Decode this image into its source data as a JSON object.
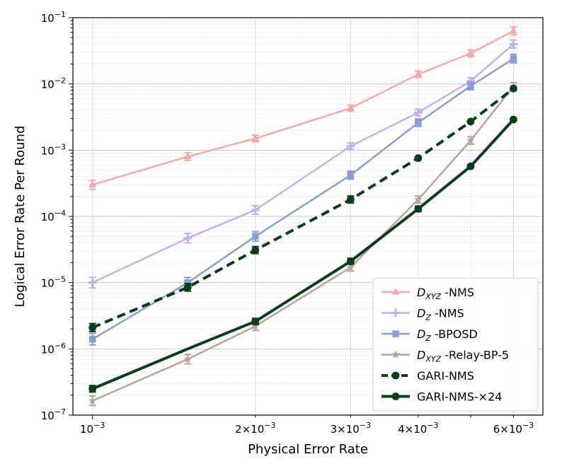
{
  "chart_data": {
    "type": "line",
    "xscale": "log",
    "yscale": "log",
    "xlabel": "Physical Error Rate",
    "ylabel": "Logical Error Rate Per Round",
    "xlim": [
      0.00092,
      0.0068
    ],
    "ylim": [
      1e-07,
      0.1
    ],
    "grid": true,
    "legend_position": "lower-right",
    "x_ticks": [
      {
        "value": 0.001,
        "base": "10",
        "exp": "−3",
        "coef": ""
      },
      {
        "value": 0.002,
        "base": "10",
        "exp": "−3",
        "coef": "2×"
      },
      {
        "value": 0.003,
        "base": "10",
        "exp": "−3",
        "coef": "3×"
      },
      {
        "value": 0.004,
        "base": "10",
        "exp": "−3",
        "coef": "4×"
      },
      {
        "value": 0.006,
        "base": "10",
        "exp": "−3",
        "coef": "6×"
      }
    ],
    "y_ticks": [
      {
        "value": 1e-07,
        "base": "10",
        "exp": "−7"
      },
      {
        "value": 1e-06,
        "base": "10",
        "exp": "−6"
      },
      {
        "value": 1e-05,
        "base": "10",
        "exp": "−5"
      },
      {
        "value": 0.0001,
        "base": "10",
        "exp": "−4"
      },
      {
        "value": 0.001,
        "base": "10",
        "exp": "−3"
      },
      {
        "value": 0.01,
        "base": "10",
        "exp": "−2"
      },
      {
        "value": 0.1,
        "base": "10",
        "exp": "−1"
      }
    ],
    "series": [
      {
        "name": "D_XYZ -NMS",
        "label_main": "D",
        "label_sub": "XYZ",
        "label_rest": " -NMS",
        "color": "#f4a9a8",
        "marker": "triangle",
        "dash": "",
        "width": 2.5,
        "x": [
          0.001,
          0.0015,
          0.002,
          0.003,
          0.004,
          0.005,
          0.006
        ],
        "y": [
          0.0003,
          0.0008,
          0.0015,
          0.0043,
          0.014,
          0.029,
          0.063
        ],
        "err": [
          0.17,
          0.14,
          0.12,
          0.11,
          0.12,
          0.13,
          0.15
        ]
      },
      {
        "name": "D_Z -NMS",
        "label_main": "D",
        "label_sub": "Z",
        "label_rest": " -NMS",
        "color": "#c8aee6",
        "marker": "plus",
        "dash": "",
        "width": 2.5,
        "x": [
          0.001,
          0.0015,
          0.002,
          0.003,
          0.004,
          0.005,
          0.006
        ],
        "y": [
          1e-05,
          4.7e-05,
          0.000125,
          0.00115,
          0.0037,
          0.011,
          0.04
        ],
        "err": [
          0.2,
          0.18,
          0.16,
          0.12,
          0.12,
          0.13,
          0.15
        ]
      },
      {
        "name": "D_Z -BPOSD",
        "label_main": "D",
        "label_sub": "Z",
        "label_rest": " -BPOSD",
        "color": "#8a9ed2",
        "marker": "square",
        "dash": "",
        "width": 2.5,
        "x": [
          0.001,
          0.0015,
          0.002,
          0.003,
          0.004,
          0.005,
          0.006
        ],
        "y": [
          1.4e-06,
          1e-05,
          5e-05,
          0.00042,
          0.0026,
          0.0093,
          0.024
        ],
        "err": [
          0.22,
          0.2,
          0.18,
          0.15,
          0.14,
          0.14,
          0.16
        ]
      },
      {
        "name": "D_XYZ -Relay-BP-5",
        "label_main": "D",
        "label_sub": "XYZ",
        "label_rest": " -Relay-BP-5",
        "color": "#b9a29b",
        "marker": "star",
        "dash": "",
        "width": 2.5,
        "x": [
          0.001,
          0.0015,
          0.002,
          0.003,
          0.004,
          0.005,
          0.006
        ],
        "y": [
          1.65e-07,
          7e-07,
          2.2e-06,
          1.7e-05,
          0.00018,
          0.0014,
          0.0092
        ],
        "err": [
          0.18,
          0.18,
          0.16,
          0.14,
          0.13,
          0.14,
          0.14
        ]
      },
      {
        "name": "GARI-NMS",
        "label_main": "GARI-NMS",
        "label_sub": "",
        "label_rest": "",
        "color": "#0b3d1c",
        "marker": "circle",
        "dash": "12,7",
        "width": 4,
        "x": [
          0.001,
          0.0015,
          0.002,
          0.003,
          0.004,
          0.005,
          0.006
        ],
        "y": [
          2.1e-06,
          8.5e-06,
          3.1e-05,
          0.00018,
          0.00076,
          0.0027,
          0.0085
        ],
        "err": [
          0.15,
          0.14,
          0.13,
          0.13,
          0.05,
          0.03,
          0.04
        ]
      },
      {
        "name": "GARI-NMS-×24",
        "label_main": "GARI-NMS-×24",
        "label_sub": "",
        "label_rest": "",
        "color": "#0b3d1c",
        "marker": "circle",
        "dash": "",
        "width": 4,
        "x": [
          0.001,
          0.0015,
          0.002,
          0.003,
          0.004,
          0.005,
          0.006
        ],
        "y": [
          2.5e-07,
          1e-06,
          2.6e-06,
          2.1e-05,
          0.00013,
          0.00057,
          0.0029
        ],
        "err": [
          0.12,
          0.0,
          0.11,
          0.11,
          0.1,
          0.05,
          0.02
        ],
        "markers_at": [
          0,
          2,
          3,
          4,
          5,
          6
        ]
      }
    ]
  }
}
